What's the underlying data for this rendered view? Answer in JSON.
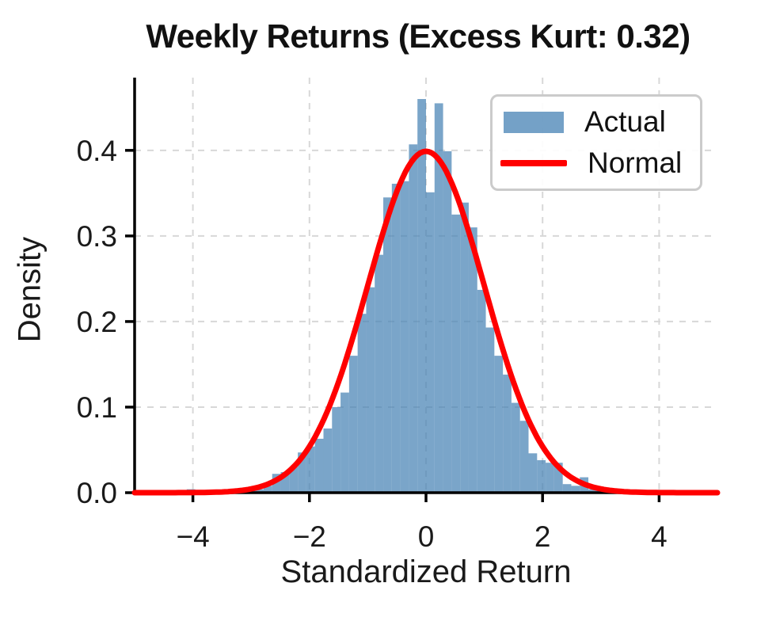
{
  "title": "Weekly Returns (Excess Kurt: 0.32)",
  "chart_data": {
    "type": "bar",
    "subtype": "histogram-with-density-curve",
    "title": "Weekly Returns (Excess Kurt: 0.32)",
    "xlabel": "Standardized Return",
    "ylabel": "Density",
    "xlim": [
      -5,
      5
    ],
    "ylim": [
      0,
      0.485
    ],
    "grid": true,
    "xticks": {
      "values": [
        -4,
        -2,
        0,
        2,
        4
      ],
      "labels": [
        "−4",
        "−2",
        "0",
        "2",
        "4"
      ]
    },
    "yticks": {
      "values": [
        0,
        0.1,
        0.2,
        0.3,
        0.4
      ],
      "labels": [
        "0.0",
        "0.1",
        "0.2",
        "0.3",
        "0.4"
      ]
    },
    "legend": {
      "position": "upper right",
      "items": [
        {
          "label": "Actual",
          "swatch": "bar",
          "color": "#4682B4"
        },
        {
          "label": "Normal",
          "swatch": "line",
          "color": "#FF0000"
        }
      ]
    },
    "histogram": {
      "name": "Actual",
      "color": "#4682B4",
      "opacity": 0.72,
      "bin_start": -4.1057,
      "bin_width": 0.14663,
      "densities": [
        0.004,
        0,
        0,
        0,
        0,
        0,
        0,
        0.003,
        0.004,
        0.008,
        0.022,
        0.024,
        0.03,
        0.047,
        0.054,
        0.063,
        0.075,
        0.1,
        0.117,
        0.16,
        0.209,
        0.24,
        0.278,
        0.345,
        0.361,
        0.364,
        0.407,
        0.46,
        0.351,
        0.455,
        0.399,
        0.325,
        0.339,
        0.31,
        0.237,
        0.193,
        0.16,
        0.138,
        0.105,
        0.084,
        0.046,
        0.038,
        0.035,
        0.035,
        0.01,
        0.008,
        0.018,
        0.004,
        0.003,
        0.003
      ]
    },
    "normal_curve": {
      "name": "Normal",
      "mean": 0,
      "std": 1,
      "peak_density": 0.3989,
      "x_range": [
        -5,
        5
      ],
      "color": "#FF0000",
      "line_width": 7
    }
  },
  "colors": {
    "bar_fill": "#4682B4",
    "curve": "#FF0000",
    "grid": "#d8d8d8",
    "axes": "#000000",
    "text": "#1a1a1a",
    "legend_border": "#cbcbcb",
    "background": "#ffffff"
  }
}
